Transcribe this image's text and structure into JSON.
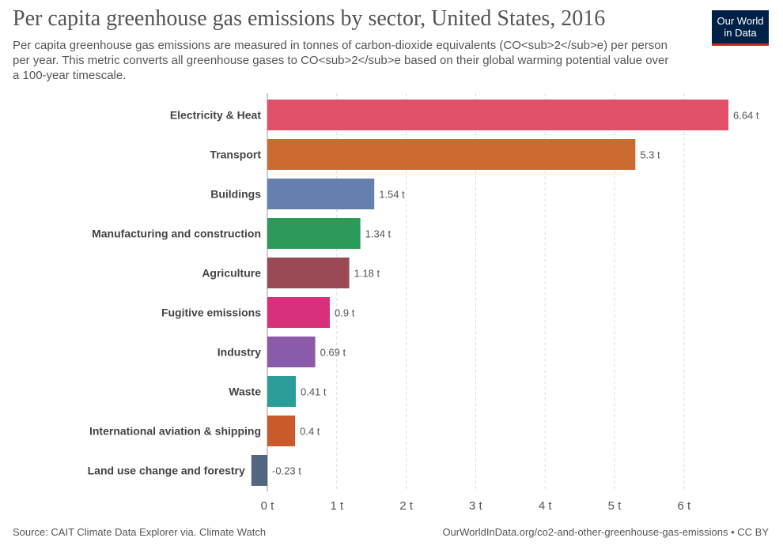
{
  "header": {
    "title": "Per capita greenhouse gas emissions by sector, United States, 2016",
    "subtitle": "Per capita greenhouse gas emissions are measured in tonnes of carbon-dioxide equivalents (CO<sub>2</sub>e) per person per year. This metric converts all greenhouse gases to CO<sub>2</sub>e based on their global warming potential value over a 100-year timescale."
  },
  "logo": {
    "line1": "Our World",
    "line2": "in Data",
    "bg_color": "#002147",
    "accent_color": "#ce261e"
  },
  "footer": {
    "source": "Source: CAIT Climate Data Explorer via. Climate Watch",
    "url": "OurWorldInData.org/co2-and-other-greenhouse-gas-emissions • CC BY"
  },
  "chart_data": {
    "type": "bar",
    "orientation": "horizontal",
    "unit": "t",
    "xlim": [
      -0.23,
      6.64
    ],
    "ticks": [
      0,
      1,
      2,
      3,
      4,
      5,
      6
    ],
    "tick_labels": [
      "0 t",
      "1 t",
      "2 t",
      "3 t",
      "4 t",
      "5 t",
      "6 t"
    ],
    "grid": true,
    "categories": [
      "Electricity & Heat",
      "Transport",
      "Buildings",
      "Manufacturing and construction",
      "Agriculture",
      "Fugitive emissions",
      "Industry",
      "Waste",
      "International aviation & shipping",
      "Land use change and forestry"
    ],
    "values": [
      6.64,
      5.3,
      1.54,
      1.34,
      1.18,
      0.9,
      0.69,
      0.41,
      0.4,
      -0.23
    ],
    "value_labels": [
      "6.64 t",
      "5.3 t",
      "1.54 t",
      "1.34 t",
      "1.18 t",
      "0.9 t",
      "0.69 t",
      "0.41 t",
      "0.4 t",
      "-0.23 t"
    ],
    "colors": [
      "#e05068",
      "#cc6b2f",
      "#6680ad",
      "#2e9a5a",
      "#9a4a55",
      "#d8307a",
      "#8a5ba8",
      "#2a9d96",
      "#c85a2c",
      "#536680"
    ]
  }
}
